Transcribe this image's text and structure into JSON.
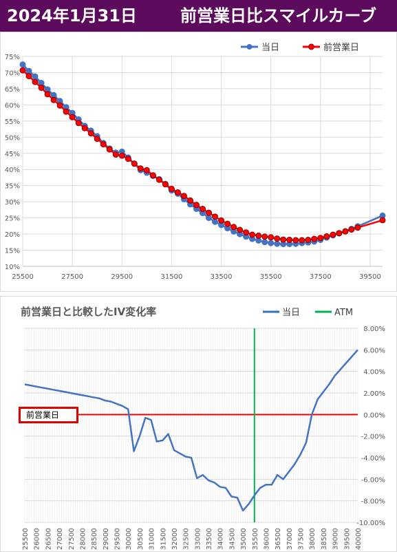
{
  "header": {
    "date": "2024年1月31日",
    "title": "前営業日比スマイルカーブ"
  },
  "colors": {
    "header_bg": "#5c0a5c",
    "today": "#4472c4",
    "prev": "#ff0000",
    "atm": "#00b050",
    "zero_line": "#ff0000"
  },
  "chart_data": [
    {
      "type": "line",
      "title": "",
      "xlabel": "",
      "ylabel": "",
      "xlim": [
        25500,
        40000
      ],
      "ylim": [
        10,
        75
      ],
      "x_ticks": [
        "25500",
        "27500",
        "29500",
        "31500",
        "33500",
        "35500",
        "37500",
        "39500"
      ],
      "y_ticks": [
        "10%",
        "15%",
        "20%",
        "25%",
        "30%",
        "35%",
        "40%",
        "45%",
        "50%",
        "55%",
        "60%",
        "65%",
        "70%",
        "75%"
      ],
      "grid": true,
      "legend_position": "top-right",
      "series": [
        {
          "name": "当日",
          "color": "#4472c4",
          "x": [
            25500,
            25750,
            26000,
            26250,
            26500,
            26750,
            27000,
            27250,
            27500,
            27750,
            28000,
            28250,
            28500,
            28750,
            29000,
            29250,
            29500,
            29750,
            30000,
            30250,
            30500,
            30750,
            31000,
            31250,
            31500,
            31750,
            32000,
            32250,
            32500,
            32750,
            33000,
            33250,
            33500,
            33750,
            34000,
            34250,
            34500,
            34750,
            35000,
            35250,
            35500,
            35750,
            36000,
            36250,
            36500,
            36750,
            37000,
            37250,
            37500,
            37750,
            38000,
            38250,
            38500,
            38750,
            39000,
            40000
          ],
          "values": [
            72.5,
            70.5,
            68.8,
            66.8,
            64.8,
            63.0,
            61.2,
            59.3,
            57.5,
            55.5,
            53.5,
            52.0,
            50.3,
            48.2,
            46.5,
            45.2,
            45.5,
            43.7,
            41.8,
            39.8,
            39.0,
            38.0,
            37.0,
            35.5,
            33.5,
            32.5,
            30.8,
            29.2,
            27.8,
            26.5,
            25.0,
            23.8,
            22.8,
            21.8,
            20.8,
            20.0,
            19.2,
            18.5,
            18.0,
            17.5,
            17.2,
            17.0,
            16.9,
            16.9,
            17.0,
            17.2,
            17.4,
            17.7,
            18.2,
            18.9,
            19.6,
            20.2,
            20.9,
            21.6,
            22.4,
            25.7
          ]
        },
        {
          "name": "前営業日",
          "color": "#ff0000",
          "x": [
            25500,
            25750,
            26000,
            26250,
            26500,
            26750,
            27000,
            27250,
            27500,
            27750,
            28000,
            28250,
            28500,
            28750,
            29000,
            29250,
            29500,
            29750,
            30000,
            30250,
            30500,
            30750,
            31000,
            31250,
            31500,
            31750,
            32000,
            32250,
            32500,
            32750,
            33000,
            33250,
            33500,
            33750,
            34000,
            34250,
            34500,
            34750,
            35000,
            35250,
            35500,
            35750,
            36000,
            36250,
            36500,
            36750,
            37000,
            37250,
            37500,
            37750,
            38000,
            38250,
            38500,
            38750,
            39000,
            40000
          ],
          "values": [
            70.7,
            68.9,
            67.1,
            65.3,
            63.3,
            61.5,
            59.8,
            57.9,
            56.2,
            54.4,
            52.8,
            51.2,
            49.5,
            47.8,
            46.2,
            44.6,
            44.3,
            43.3,
            41.8,
            40.3,
            39.8,
            38.2,
            36.8,
            35.4,
            34.0,
            32.9,
            31.8,
            30.4,
            29.0,
            27.8,
            26.6,
            25.4,
            24.2,
            23.2,
            22.2,
            21.3,
            20.5,
            19.8,
            19.5,
            19.2,
            19.0,
            18.6,
            18.3,
            18.2,
            18.1,
            18.1,
            18.2,
            18.5,
            18.8,
            19.3,
            19.8,
            20.3,
            20.8,
            21.4,
            22.0,
            24.3
          ]
        }
      ]
    },
    {
      "type": "line",
      "title": "前営業日と比較したIV変化率",
      "xlabel": "",
      "ylabel": "",
      "xlim": [
        25500,
        40000
      ],
      "ylim": [
        -10,
        8
      ],
      "y_ticks": [
        "8.00%",
        "6.00%",
        "4.00%",
        "2.00%",
        "0.00%",
        "-2.00%",
        "-4.00%",
        "-6.00%",
        "-8.00%",
        "-10.00%"
      ],
      "x_ticks": [
        "25500",
        "26000",
        "26500",
        "27000",
        "27500",
        "28000",
        "28500",
        "29000",
        "29500",
        "30000",
        "30500",
        "31000",
        "31500",
        "32000",
        "32500",
        "33000",
        "33500",
        "34000",
        "34500",
        "35000",
        "35500",
        "36000",
        "36500",
        "37000",
        "37500",
        "38000",
        "38500",
        "39000",
        "39500",
        "40000"
      ],
      "grid": true,
      "legend_position": "top-right",
      "reference_label": "前営業日",
      "series": [
        {
          "name": "当日",
          "color": "#4472c4",
          "x": [
            25500,
            25750,
            26000,
            26250,
            26500,
            26750,
            27000,
            27250,
            27500,
            27750,
            28000,
            28250,
            28500,
            28750,
            29000,
            29250,
            29500,
            29750,
            30000,
            30250,
            30500,
            30750,
            31000,
            31250,
            31500,
            31750,
            32000,
            32250,
            32500,
            32750,
            33000,
            33250,
            33500,
            33750,
            34000,
            34250,
            34500,
            34750,
            35000,
            35250,
            35500,
            35750,
            36000,
            36250,
            36500,
            36750,
            37000,
            37250,
            37500,
            37750,
            38000,
            38250,
            38500,
            38750,
            39000,
            40000
          ],
          "values": [
            2.8,
            2.7,
            2.6,
            2.5,
            2.4,
            2.3,
            2.2,
            2.1,
            2.0,
            1.9,
            1.8,
            1.7,
            1.6,
            1.5,
            1.3,
            1.2,
            1.0,
            0.8,
            0.5,
            -3.4,
            -2.0,
            -0.3,
            -0.5,
            -2.5,
            -2.4,
            -1.8,
            -3.3,
            -3.6,
            -3.9,
            -4.0,
            -5.9,
            -5.6,
            -6.1,
            -6.3,
            -6.7,
            -6.8,
            -7.6,
            -7.7,
            -8.9,
            -8.3,
            -7.5,
            -6.8,
            -6.5,
            -6.5,
            -5.6,
            -6.0,
            -5.3,
            -4.6,
            -3.7,
            -2.6,
            0.0,
            1.4,
            2.1,
            2.8,
            3.6,
            6.0
          ]
        },
        {
          "name": "ATM",
          "color": "#00b050",
          "x": 35500
        }
      ]
    }
  ]
}
